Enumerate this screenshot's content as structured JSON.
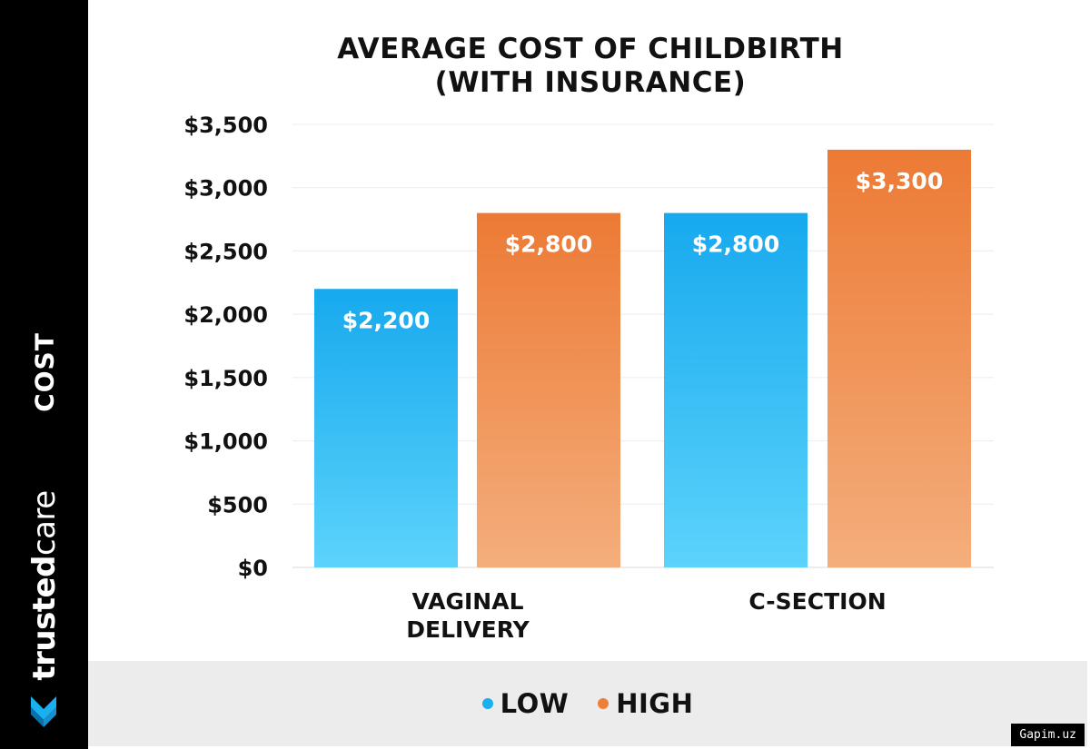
{
  "brand": {
    "part1": "trusted",
    "part2": "care",
    "logo_icon": "heart-chevron-icon"
  },
  "watermark": "Gapim.uz",
  "chart_data": {
    "type": "bar",
    "title": [
      "AVERAGE COST OF CHILDBIRTH",
      "(WITH INSURANCE)"
    ],
    "ylabel": "COST",
    "categories": [
      [
        "VAGINAL",
        "DELIVERY"
      ],
      [
        "C-SECTION"
      ]
    ],
    "series": [
      {
        "name": "LOW",
        "values": [
          2200,
          2800
        ],
        "labels": [
          "$2,200",
          "$2,800"
        ],
        "color_top": "#17a9ee",
        "color_bottom": "#5cd3fb"
      },
      {
        "name": "HIGH",
        "values": [
          2800,
          3300
        ],
        "labels": [
          "$2,800",
          "$3,300"
        ],
        "color_top": "#ec7a35",
        "color_bottom": "#f4ae7c"
      }
    ],
    "ylim": [
      0,
      3500
    ],
    "yticks": [
      0,
      500,
      1000,
      1500,
      2000,
      2500,
      3000,
      3500
    ],
    "ytick_labels": [
      "$0",
      "$500",
      "$1,000",
      "$1,500",
      "$2,000",
      "$2,500",
      "$3,000",
      "$3,500"
    ],
    "grid": true,
    "legend_position": "bottom",
    "legend_colors": [
      "#1ab0f0",
      "#ee7f3a"
    ]
  }
}
